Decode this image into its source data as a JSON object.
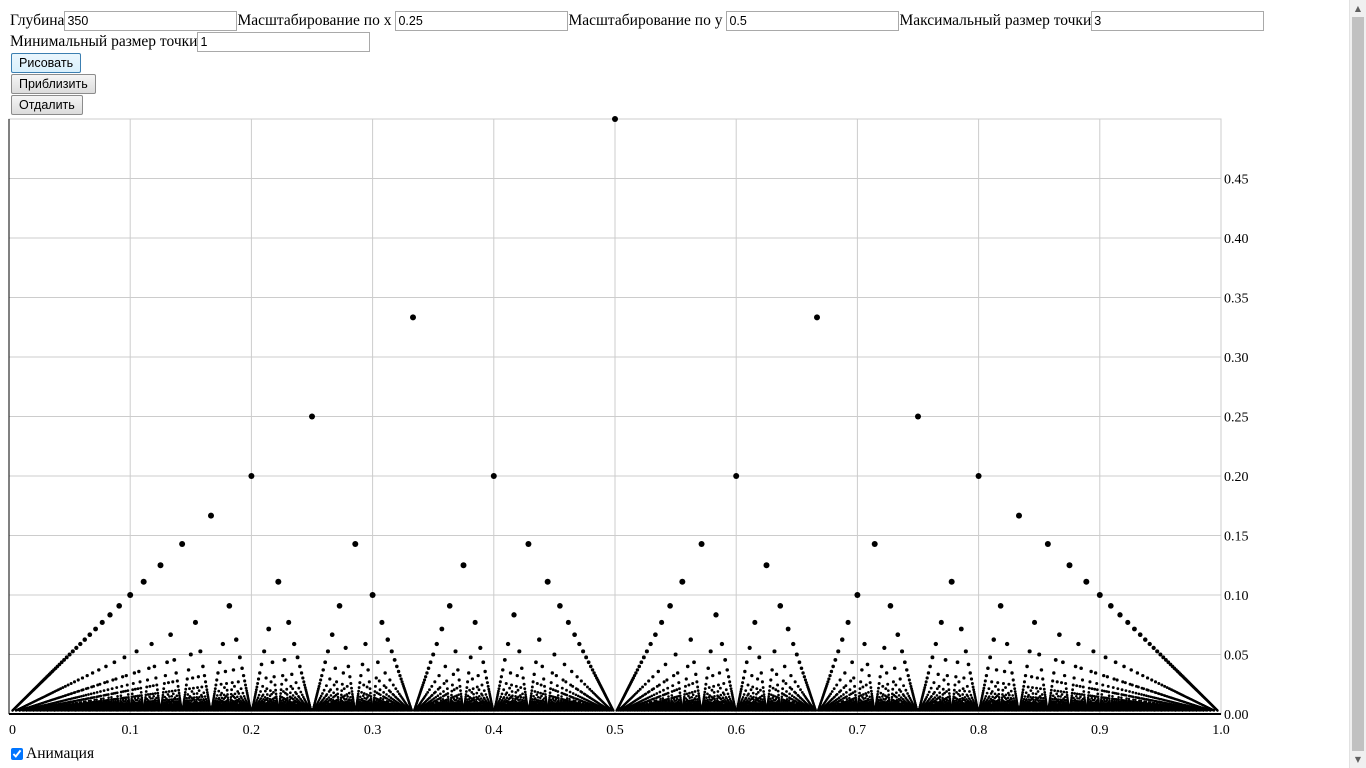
{
  "controls": {
    "depth": {
      "label": "Глубина",
      "value": "350"
    },
    "scale_x": {
      "label": "Масштабирование по x",
      "value": "0.25"
    },
    "scale_y": {
      "label": "Масштабирование по y",
      "value": "0.5"
    },
    "max_point": {
      "label": "Максимальный размер точки",
      "value": "3"
    },
    "min_point": {
      "label": "Минимальный размер точки",
      "value": "1"
    }
  },
  "buttons": {
    "draw": "Рисовать",
    "zoom_in": "Приблизить",
    "zoom_out": "Отдалить"
  },
  "animation": {
    "label": "Анимация",
    "checked": true
  },
  "chart_data": {
    "type": "scatter",
    "title": "",
    "xlabel": "",
    "ylabel": "",
    "xlim": [
      0,
      1
    ],
    "ylim": [
      0,
      0.5
    ],
    "x_ticks": [
      "0",
      "0.1",
      "0.2",
      "0.3",
      "0.4",
      "0.5",
      "0.6",
      "0.7",
      "0.8",
      "0.9",
      "1.0"
    ],
    "y_ticks": [
      "0.00",
      "0.05",
      "0.10",
      "0.15",
      "0.20",
      "0.25",
      "0.30",
      "0.35",
      "0.40",
      "0.45"
    ],
    "grid": true,
    "generator": "points (p/q, 1/q) for reduced fractions p/q with q up to depth",
    "highlighted_points": [
      {
        "x": 0.5,
        "y": 0.5
      },
      {
        "x": 0.333,
        "y": 0.333
      },
      {
        "x": 0.667,
        "y": 0.333
      },
      {
        "x": 0.25,
        "y": 0.25
      },
      {
        "x": 0.75,
        "y": 0.25
      },
      {
        "x": 0.2,
        "y": 0.2
      },
      {
        "x": 0.4,
        "y": 0.2
      },
      {
        "x": 0.6,
        "y": 0.2
      },
      {
        "x": 0.8,
        "y": 0.2
      }
    ],
    "point_color": "#000000",
    "grid_color": "#cccccc"
  }
}
